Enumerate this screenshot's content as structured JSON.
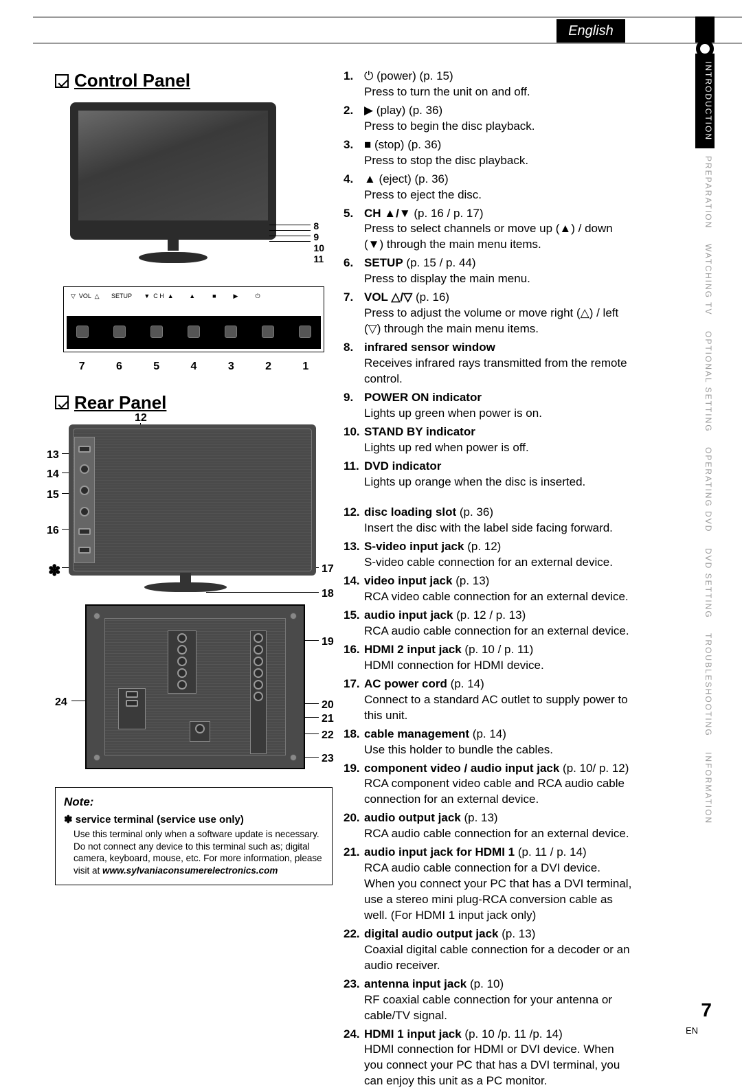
{
  "header": {
    "language": "English"
  },
  "side_tabs": [
    {
      "label": "INTRODUCTION",
      "active": true
    },
    {
      "label": "PREPARATION",
      "active": false
    },
    {
      "label": "WATCHING TV",
      "active": false
    },
    {
      "label": "OPTIONAL SETTING",
      "active": false
    },
    {
      "label": "OPERATING DVD",
      "active": false
    },
    {
      "label": "DVD SETTING",
      "active": false
    },
    {
      "label": "TROUBLESHOOTING",
      "active": false
    },
    {
      "label": "INFORMATION",
      "active": false
    }
  ],
  "sections": {
    "control_panel": "Control Panel",
    "rear_panel": "Rear Panel"
  },
  "control_diagram": {
    "indicator_callouts": [
      "8",
      "9",
      "10",
      "11"
    ],
    "button_labels_row": "▽  VOL  △       SETUP       ▼  C H  ▲         ▲          ■          ▶          ⏻",
    "button_numbers": [
      "7",
      "6",
      "5",
      "4",
      "3",
      "2",
      "1"
    ]
  },
  "rear_diagram": {
    "top_numbers": {
      "n12": "12",
      "n13": "13",
      "n14": "14",
      "n15": "15",
      "n16": "16",
      "star": "✽",
      "n17": "17",
      "n18": "18"
    },
    "bottom_numbers": {
      "n19": "19",
      "n20": "20",
      "n21": "21",
      "n22": "22",
      "n23": "23",
      "n24": "24"
    }
  },
  "note": {
    "heading": "Note:",
    "title": "✽ service terminal (service use only)",
    "body": "Use this terminal only when a software update is necessary. Do not connect any device to this terminal such as; digital camera, keyboard, mouse, etc. For more information, please visit at ",
    "url": "www.sylvaniaconsumerelectronics.com"
  },
  "features_a": [
    {
      "n": "1.",
      "icon": "⏻",
      "tag": " (power)",
      "ref": " (p. 15)",
      "desc": "Press to turn the unit on and off."
    },
    {
      "n": "2.",
      "icon": "▶",
      "tag": " (play)",
      "ref": " (p. 36)",
      "desc": "Press to begin the disc playback."
    },
    {
      "n": "3.",
      "icon": "■",
      "tag": " (stop)",
      "ref": " (p. 36)",
      "desc": "Press to stop the disc playback."
    },
    {
      "n": "4.",
      "icon": "▲",
      "tag": " (eject)",
      "ref": " (p. 36)",
      "desc": "Press to eject the disc."
    },
    {
      "n": "5.",
      "title": "CH ▲/▼",
      "ref": " (p. 16 / p. 17)",
      "desc": "Press to select channels or move up (▲) / down (▼) through the main menu items."
    },
    {
      "n": "6.",
      "title": "SETUP",
      "ref": " (p. 15 / p. 44)",
      "desc": "Press to display the main menu."
    },
    {
      "n": "7.",
      "title": "VOL △/▽",
      "ref": " (p. 16)",
      "desc": "Press to adjust the volume or move right (△) / left (▽) through the main menu items."
    },
    {
      "n": "8.",
      "title": "infrared sensor window",
      "desc": "Receives infrared rays transmitted from the remote control."
    },
    {
      "n": "9.",
      "title": "POWER ON indicator",
      "desc": "Lights up green when power is on."
    },
    {
      "n": "10.",
      "title": "STAND BY indicator",
      "desc": "Lights up red when power is off."
    },
    {
      "n": "11.",
      "title": "DVD indicator",
      "desc": "Lights up orange when the disc is inserted."
    }
  ],
  "features_b": [
    {
      "n": "12.",
      "title": "disc loading slot",
      "ref": " (p. 36)",
      "desc": "Insert the disc with the label side facing forward."
    },
    {
      "n": "13.",
      "title": "S-video input jack",
      "ref": " (p. 12)",
      "desc": "S-video cable connection for an external device."
    },
    {
      "n": "14.",
      "title": "video input jack",
      "ref": " (p. 13)",
      "desc": "RCA video cable connection for an external device."
    },
    {
      "n": "15.",
      "title": "audio input jack",
      "ref": " (p. 12 / p. 13)",
      "desc": "RCA audio cable connection for an external device."
    },
    {
      "n": "16.",
      "title": "HDMI 2 input jack",
      "ref": " (p. 10 / p. 11)",
      "desc": "HDMI connection for HDMI device."
    },
    {
      "n": "17.",
      "title": "AC power cord",
      "ref": " (p. 14)",
      "desc": "Connect to a standard AC outlet to supply power to this unit."
    },
    {
      "n": "18.",
      "title": "cable management",
      "ref": " (p. 14)",
      "desc": "Use this holder to bundle the cables."
    },
    {
      "n": "19.",
      "title": "component video / audio input jack",
      "ref": " (p. 10/ p. 12)",
      "desc": "RCA component video cable and RCA audio cable connection for an external device."
    },
    {
      "n": "20.",
      "title": "audio output jack",
      "ref": " (p. 13)",
      "desc": "RCA audio cable connection for an external device."
    },
    {
      "n": "21.",
      "title": "audio input jack for HDMI 1",
      "ref": " (p. 11 / p. 14)",
      "desc": "RCA audio cable connection for a DVI device. When you connect your PC that has a DVI terminal, use a stereo mini plug-RCA conversion cable as well. (For HDMI 1 input jack only)"
    },
    {
      "n": "22.",
      "title": "digital audio output jack",
      "ref": " (p. 13)",
      "desc": "Coaxial digital cable connection for a decoder or an audio receiver."
    },
    {
      "n": "23.",
      "title": "antenna input jack",
      "ref": " (p. 10)",
      "desc": "RF coaxial cable connection for your antenna or cable/TV signal."
    },
    {
      "n": "24.",
      "title": "HDMI 1 input jack",
      "ref": " (p. 10 /p. 11 /p. 14)",
      "desc": "HDMI connection for HDMI or DVI device. When you connect your PC that has a DVI terminal, you can enjoy this unit as a PC monitor."
    }
  ],
  "footer": {
    "page": "7",
    "lang": "EN"
  },
  "colors": {
    "ink": "#000000",
    "muted": "#9a9a9a",
    "tv": "#2b2b2b",
    "panel": "#4a4a4a"
  }
}
